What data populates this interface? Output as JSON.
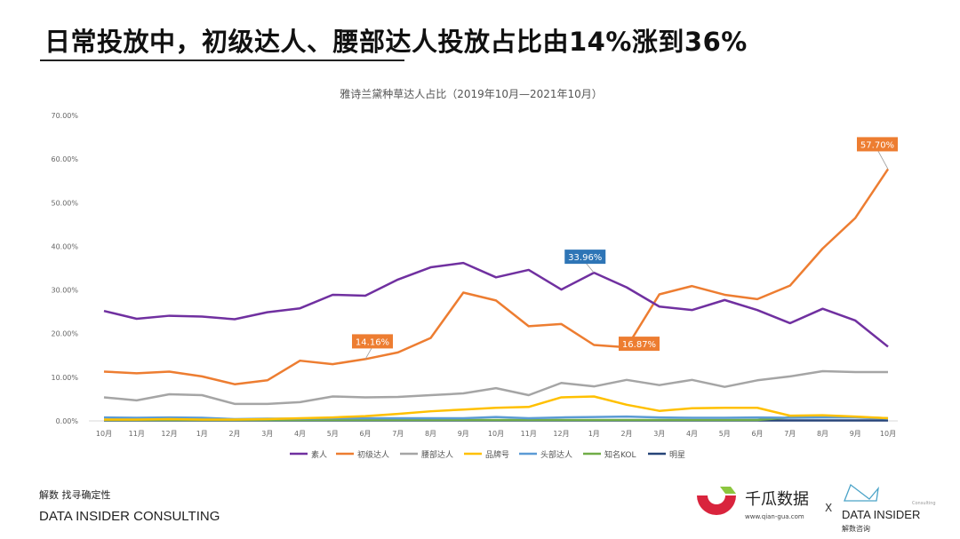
{
  "headline": "日常投放中，初级达人、腰部达人投放占比由14%涨到36%",
  "footer": {
    "tagline": "解数 找寻确定性",
    "company": "DATA INSIDER CONSULTING"
  },
  "logos": {
    "qiangua_name": "千瓜数据",
    "qiangua_url": "www.qian-gua.com",
    "x": "X",
    "di_name": "DATA INSIDER",
    "di_sub": "解数咨询",
    "di_tag": "Consulting"
  },
  "chart_data": {
    "type": "line",
    "title": "雅诗兰黛种草达人占比（2019年10月—2021年10月）",
    "categories": [
      "10月",
      "11月",
      "12月",
      "1月",
      "2月",
      "3月",
      "4月",
      "5月",
      "6月",
      "7月",
      "8月",
      "9月",
      "10月",
      "11月",
      "12月",
      "1月",
      "2月",
      "3月",
      "4月",
      "5月",
      "6月",
      "7月",
      "8月",
      "9月",
      "10月"
    ],
    "ylim": [
      0,
      70
    ],
    "yticks": [
      "0.00%",
      "10.00%",
      "20.00%",
      "30.00%",
      "40.00%",
      "50.00%",
      "60.00%",
      "70.00%"
    ],
    "grid": false,
    "legend_position": "bottom",
    "series": [
      {
        "name": "素人",
        "color": "#7030a0",
        "values": [
          25.2,
          23.4,
          24.1,
          23.9,
          23.3,
          24.9,
          25.8,
          28.9,
          28.7,
          32.4,
          35.2,
          36.2,
          32.9,
          34.6,
          30.1,
          33.96,
          30.6,
          26.2,
          25.4,
          27.7,
          25.4,
          22.4,
          25.7,
          23.0,
          17.0
        ]
      },
      {
        "name": "初级达人",
        "color": "#ed7d31",
        "values": [
          11.3,
          10.9,
          11.3,
          10.2,
          8.4,
          9.3,
          13.8,
          13.0,
          14.16,
          15.7,
          19.0,
          29.4,
          27.6,
          21.7,
          22.2,
          17.4,
          16.87,
          29.0,
          30.9,
          28.9,
          27.9,
          31.0,
          39.5,
          46.5,
          57.7
        ]
      },
      {
        "name": "腰部达人",
        "color": "#a5a5a5",
        "values": [
          5.4,
          4.7,
          6.1,
          5.9,
          3.9,
          3.9,
          4.3,
          5.6,
          5.4,
          5.5,
          5.9,
          6.3,
          7.5,
          5.9,
          8.7,
          7.9,
          9.4,
          8.2,
          9.4,
          7.8,
          9.3,
          10.2,
          11.4,
          11.2,
          11.2
        ]
      },
      {
        "name": "品牌号",
        "color": "#ffc000",
        "values": [
          0.3,
          0.3,
          0.4,
          0.3,
          0.3,
          0.4,
          0.6,
          0.8,
          1.1,
          1.6,
          2.2,
          2.6,
          3.0,
          3.2,
          5.4,
          5.6,
          3.7,
          2.3,
          2.9,
          3.0,
          3.0,
          1.2,
          1.3,
          1.0,
          0.6
        ]
      },
      {
        "name": "头部达人",
        "color": "#5b9bd5",
        "values": [
          0.8,
          0.7,
          0.8,
          0.7,
          0.4,
          0.5,
          0.5,
          0.6,
          0.6,
          0.6,
          0.6,
          0.6,
          0.9,
          0.6,
          0.8,
          0.9,
          1.0,
          0.8,
          0.7,
          0.7,
          0.8,
          0.7,
          0.8,
          0.8,
          0.5
        ]
      },
      {
        "name": "知名KOL",
        "color": "#70ad47",
        "values": [
          0.2,
          0.2,
          0.2,
          0.2,
          0.2,
          0.2,
          0.2,
          0.2,
          0.2,
          0.2,
          0.2,
          0.2,
          0.2,
          0.2,
          0.2,
          0.2,
          0.2,
          0.2,
          0.2,
          0.2,
          0.2,
          0.8,
          1.2,
          0.9,
          0.6
        ]
      },
      {
        "name": "明星",
        "color": "#264478",
        "values": [
          0.1,
          0.1,
          0.1,
          0.1,
          0.1,
          0.1,
          0.1,
          0.1,
          0.1,
          0.1,
          0.1,
          0.1,
          0.1,
          0.1,
          0.1,
          0.1,
          0.1,
          0.1,
          0.1,
          0.1,
          0.1,
          0.1,
          0.1,
          0.1,
          0.1
        ]
      }
    ],
    "annotations": [
      {
        "series": "初级达人",
        "index": 8,
        "text": "14.16%",
        "color": "#ed7d31"
      },
      {
        "series": "素人",
        "index": 15,
        "text": "33.96%",
        "color": "#2e75b6"
      },
      {
        "series": "初级达人",
        "index": 16,
        "text": "16.87%",
        "color": "#ed7d31"
      },
      {
        "series": "初级达人",
        "index": 24,
        "text": "57.70%",
        "color": "#ed7d31"
      }
    ]
  }
}
